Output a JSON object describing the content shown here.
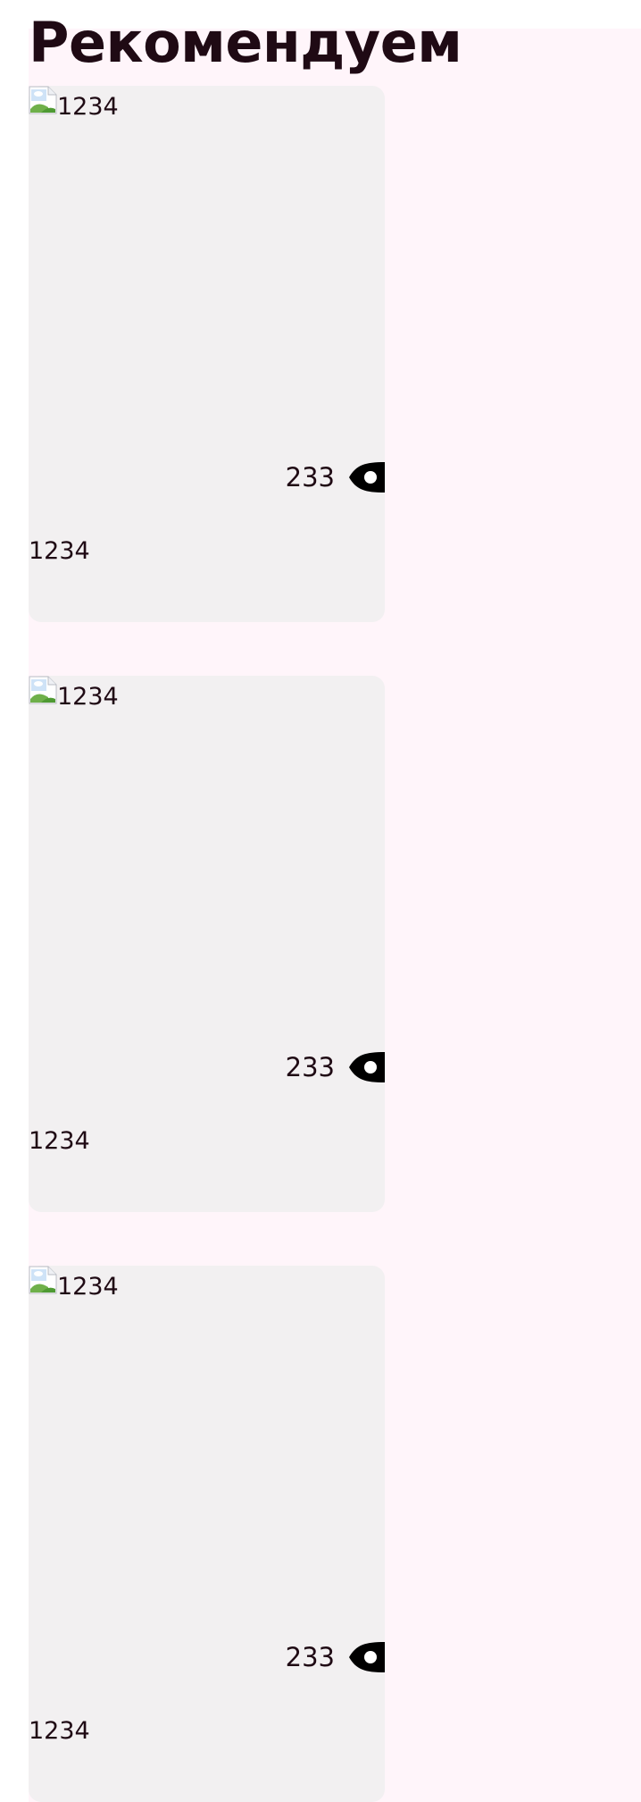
{
  "section": {
    "title": "Рекомендуем"
  },
  "cards": [
    {
      "image_alt": "1234",
      "views": "233",
      "title": "1234"
    },
    {
      "image_alt": "1234",
      "views": "233",
      "title": "1234"
    },
    {
      "image_alt": "1234",
      "views": "233",
      "title": "1234"
    }
  ],
  "icons": {
    "image": "broken-image-icon",
    "views": "eye-icon"
  },
  "colors": {
    "background": "#fff5fa",
    "card": "#f2f0f1",
    "text": "#1f0a14",
    "icon": "#000000"
  }
}
